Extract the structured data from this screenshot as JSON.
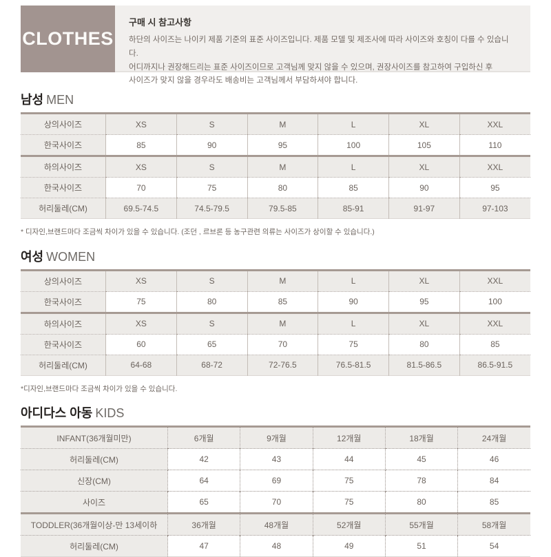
{
  "colors": {
    "logo_bg": "#a29490",
    "panel_bg": "#f1efed",
    "cell_shade": "#edebe8",
    "thick_border": "#a69a93",
    "text": "#6b635d"
  },
  "header": {
    "logo": "CLOTHES",
    "notice_title": "구매 시 참고사항",
    "notice_lines": [
      "하단의 사이즈는 나이키 제품 기준의 표준 사이즈입니다. 제품 모델 및 제조사에 따라 사이즈와 호칭이 다를 수 있습니다.",
      "어디까지나 권장해드리는 표준 사이즈이므로 고객님께 맞지 않을 수 있으며, 권장사이즈를 참고하여 구입하신 후",
      "사이즈가 맞지 않을 경우라도 배송비는 고객님께서 부담하셔야 합니다."
    ]
  },
  "sections": [
    {
      "id": "men",
      "title_ko": "남성",
      "title_en": "MEN",
      "variant": "solid",
      "first": true,
      "rows": [
        {
          "label": "상의사이즈",
          "values": [
            "XS",
            "S",
            "M",
            "L",
            "XL",
            "XXL"
          ],
          "shaded": true,
          "thick_top": false
        },
        {
          "label": "한국사이즈",
          "values": [
            "85",
            "90",
            "95",
            "100",
            "105",
            "110"
          ],
          "shaded": false,
          "thick_top": false
        },
        {
          "label": "하의사이즈",
          "values": [
            "XS",
            "S",
            "M",
            "L",
            "XL",
            "XXL"
          ],
          "shaded": true,
          "thick_top": true
        },
        {
          "label": "한국사이즈",
          "values": [
            "70",
            "75",
            "80",
            "85",
            "90",
            "95"
          ],
          "shaded": false,
          "thick_top": false
        },
        {
          "label": "허리둘레(CM)",
          "values": [
            "69.5-74.5",
            "74.5-79.5",
            "79.5-85",
            "85-91",
            "91-97",
            "97-103"
          ],
          "shaded": true,
          "thick_top": false
        }
      ],
      "footnote": "* 디자인,브랜드마다 조금씩 차이가 있을 수 있습니다. (조던 , 르브론 등 농구관련 의류는 사이즈가 상이할 수 있습니다.)"
    },
    {
      "id": "women",
      "title_ko": "여성",
      "title_en": "WOMEN",
      "variant": "solid",
      "first": false,
      "rows": [
        {
          "label": "상의사이즈",
          "values": [
            "XS",
            "S",
            "M",
            "L",
            "XL",
            "XXL"
          ],
          "shaded": true,
          "thick_top": false
        },
        {
          "label": "한국사이즈",
          "values": [
            "75",
            "80",
            "85",
            "90",
            "95",
            "100"
          ],
          "shaded": false,
          "thick_top": false
        },
        {
          "label": "하의사이즈",
          "values": [
            "XS",
            "S",
            "M",
            "L",
            "XL",
            "XXL"
          ],
          "shaded": true,
          "thick_top": true
        },
        {
          "label": "한국사이즈",
          "values": [
            "60",
            "65",
            "70",
            "75",
            "80",
            "85"
          ],
          "shaded": false,
          "thick_top": false
        },
        {
          "label": "허리둘레(CM)",
          "values": [
            "64-68",
            "68-72",
            "72-76.5",
            "76.5-81.5",
            "81.5-86.5",
            "86.5-91.5"
          ],
          "shaded": true,
          "thick_top": false
        }
      ],
      "footnote": "*디자인,브랜드마다 조금씩 차이가 있을 수 있습니다."
    },
    {
      "id": "kids",
      "title_ko": "아디다스 아동",
      "title_en": "KIDS",
      "variant": "dotted",
      "first": false,
      "rows": [
        {
          "label": "INFANT(36개월미만)",
          "values": [
            "6개월",
            "9개월",
            "12개월",
            "18개월",
            "24개월"
          ],
          "shaded": true,
          "thick_top": false
        },
        {
          "label": "허리둘레(CM)",
          "values": [
            "42",
            "43",
            "44",
            "45",
            "46"
          ],
          "shaded": false,
          "thick_top": false
        },
        {
          "label": "신장(CM)",
          "values": [
            "64",
            "69",
            "75",
            "78",
            "84"
          ],
          "shaded": false,
          "thick_top": false
        },
        {
          "label": "사이즈",
          "values": [
            "65",
            "70",
            "75",
            "80",
            "85"
          ],
          "shaded": false,
          "thick_top": false
        },
        {
          "label": "TODDLER(36개월이상-만 13세이하",
          "values": [
            "36개월",
            "48개월",
            "52개월",
            "55개월",
            "58개월"
          ],
          "shaded": true,
          "thick_top": true
        },
        {
          "label": "허리둘레(CM)",
          "values": [
            "47",
            "48",
            "49",
            "51",
            "54"
          ],
          "shaded": false,
          "thick_top": false
        }
      ],
      "footnote": ""
    }
  ]
}
